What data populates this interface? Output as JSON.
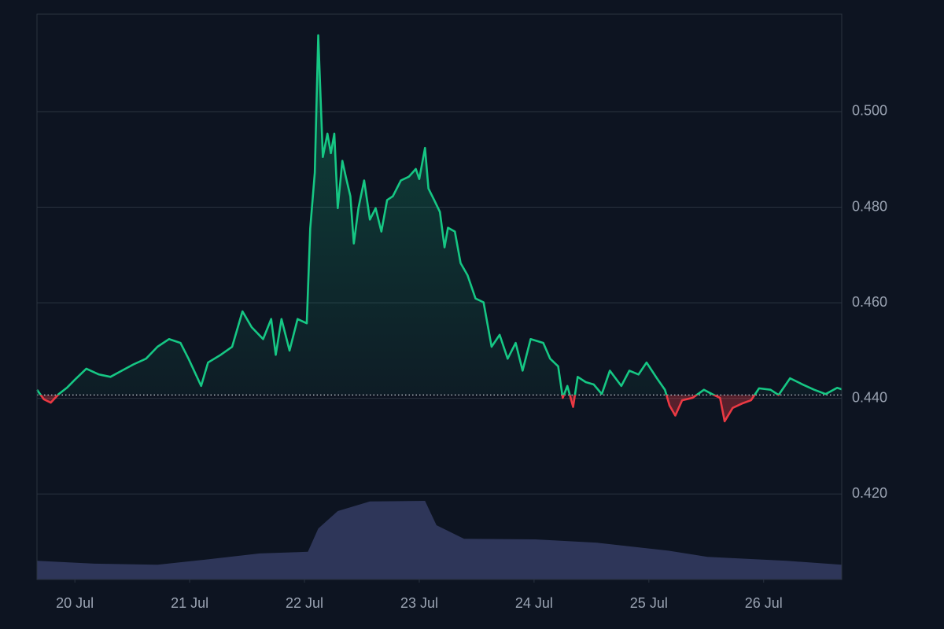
{
  "chart_data": {
    "type": "line",
    "price": {
      "x": [
        19.67,
        19.73,
        19.79,
        19.86,
        19.93,
        20.0,
        20.1,
        20.21,
        20.31,
        20.41,
        20.51,
        20.62,
        20.72,
        20.82,
        20.92,
        20.99,
        21.1,
        21.16,
        21.27,
        21.37,
        21.46,
        21.54,
        21.64,
        21.71,
        21.75,
        21.8,
        21.87,
        21.94,
        22.02,
        22.05,
        22.09,
        22.12,
        22.16,
        22.2,
        22.23,
        22.26,
        22.29,
        22.33,
        22.36,
        22.4,
        22.43,
        22.47,
        22.52,
        22.57,
        22.62,
        22.67,
        22.72,
        22.77,
        22.84,
        22.91,
        22.97,
        23.0,
        23.05,
        23.08,
        23.13,
        23.18,
        23.22,
        23.25,
        23.31,
        23.36,
        23.42,
        23.49,
        23.56,
        23.63,
        23.7,
        23.77,
        23.84,
        23.9,
        23.97,
        24.08,
        24.14,
        24.21,
        24.25,
        24.29,
        24.34,
        24.38,
        24.45,
        24.52,
        24.59,
        24.66,
        24.76,
        24.83,
        24.91,
        24.98,
        25.07,
        25.14,
        25.18,
        25.23,
        25.29,
        25.38,
        25.48,
        25.55,
        25.62,
        25.66,
        25.73,
        25.82,
        25.89,
        25.96,
        26.06,
        26.13,
        26.23,
        26.34,
        26.44,
        26.54,
        26.64,
        26.68
      ],
      "values": [
        0.4418,
        0.4398,
        0.4391,
        0.4409,
        0.4422,
        0.4439,
        0.4462,
        0.445,
        0.4445,
        0.4458,
        0.4471,
        0.4483,
        0.4508,
        0.4524,
        0.4516,
        0.4483,
        0.4426,
        0.4475,
        0.4491,
        0.4508,
        0.4582,
        0.4549,
        0.4524,
        0.4566,
        0.4491,
        0.4566,
        0.45,
        0.4566,
        0.4557,
        0.4755,
        0.4872,
        0.516,
        0.4905,
        0.4954,
        0.4913,
        0.4954,
        0.4798,
        0.4897,
        0.4864,
        0.4823,
        0.4724,
        0.4798,
        0.4856,
        0.4774,
        0.4798,
        0.4749,
        0.4815,
        0.4823,
        0.4856,
        0.4864,
        0.488,
        0.4859,
        0.4924,
        0.4839,
        0.4815,
        0.479,
        0.4716,
        0.4757,
        0.4749,
        0.4683,
        0.4658,
        0.4609,
        0.4601,
        0.4508,
        0.4533,
        0.4483,
        0.4516,
        0.4458,
        0.4524,
        0.4516,
        0.4483,
        0.4467,
        0.4401,
        0.4426,
        0.4382,
        0.4445,
        0.4434,
        0.4429,
        0.4409,
        0.4458,
        0.4426,
        0.4458,
        0.445,
        0.4475,
        0.4442,
        0.4418,
        0.4385,
        0.4364,
        0.4396,
        0.4401,
        0.4418,
        0.4409,
        0.4401,
        0.4352,
        0.438,
        0.439,
        0.4396,
        0.4421,
        0.4418,
        0.4407,
        0.4442,
        0.4429,
        0.4418,
        0.4409,
        0.4422,
        0.4419
      ],
      "color_up": "#16c784",
      "color_down": "#ea3943"
    },
    "baseline": 0.4407,
    "volume": {
      "axis": "y2",
      "x": [
        19.67,
        20.17,
        20.72,
        21.13,
        21.61,
        22.03,
        22.12,
        22.29,
        22.57,
        23.05,
        23.15,
        23.39,
        24.01,
        24.55,
        25.17,
        25.51,
        26.2,
        26.68
      ],
      "values": [
        3.3,
        2.8,
        2.6,
        3.5,
        4.6,
        4.9,
        9.0,
        12.1,
        13.8,
        13.9,
        9.6,
        7.2,
        7.1,
        6.5,
        5.1,
        4.0,
        3.3,
        2.6
      ],
      "color": "#2e3659"
    },
    "xlim": [
      19.67,
      26.68
    ],
    "xticks": [
      {
        "value": 20,
        "label": "20 Jul"
      },
      {
        "value": 21,
        "label": "21 Jul"
      },
      {
        "value": 22,
        "label": "22 Jul"
      },
      {
        "value": 23,
        "label": "23 Jul"
      },
      {
        "value": 24,
        "label": "24 Jul"
      },
      {
        "value": 25,
        "label": "25 Jul"
      },
      {
        "value": 26,
        "label": "26 Jul"
      }
    ],
    "ylim": [
      0.4021,
      0.5204
    ],
    "yticks": [
      {
        "value": 0.42,
        "label": "0.420"
      },
      {
        "value": 0.44,
        "label": "0.440"
      },
      {
        "value": 0.46,
        "label": "0.460"
      },
      {
        "value": 0.48,
        "label": "0.480"
      },
      {
        "value": 0.5,
        "label": "0.500"
      }
    ],
    "y2lim": [
      0,
      100
    ],
    "grid": true
  }
}
